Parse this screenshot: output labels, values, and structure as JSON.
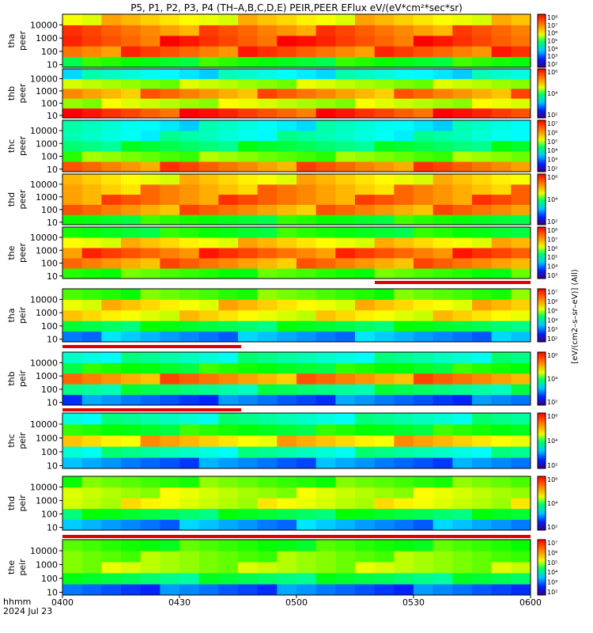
{
  "title": "P5, P1, P2, P3, P4 (TH–A,B,C,D,E) PEIR,PEER EFlux eV/(eV*cm²*sec*sr)",
  "footer": {
    "axis_label": "hhmm",
    "date": "2024 Jul 23"
  },
  "x_ticks": [
    "0400",
    "0430",
    "0500",
    "0530",
    "0600"
  ],
  "colorbar_label": "[eV/(cm2–s–sr–eV)] (All)",
  "chart_data": [
    {
      "type": "heatmap",
      "probe": "tha",
      "ylabel": [
        "tha",
        "peer"
      ],
      "y_ticks": [
        "10",
        "100",
        "1000",
        "10000"
      ],
      "cbar_ticks": [
        "10²",
        "10³",
        "10⁴",
        "10⁵",
        "10⁶",
        "10⁷",
        "10⁸"
      ],
      "style": "warm",
      "flag": "none",
      "xlim": [
        "0400",
        "0600"
      ],
      "ylim": [
        5,
        30000
      ]
    },
    {
      "type": "heatmap",
      "probe": "thb",
      "ylabel": [
        "thb",
        "peer"
      ],
      "y_ticks": [
        "10",
        "100",
        "1000",
        "10000"
      ],
      "cbar_ticks": [
        "10²",
        "10⁴",
        "10⁶"
      ],
      "style": "band_peer",
      "flag": "none",
      "xlim": [
        "0400",
        "0600"
      ],
      "ylim": [
        5,
        30000
      ]
    },
    {
      "type": "heatmap",
      "probe": "thc",
      "ylabel": [
        "thc",
        "peer"
      ],
      "y_ticks": [
        "10",
        "100",
        "1000",
        "10000"
      ],
      "cbar_ticks": [
        "10²",
        "10³",
        "10⁴",
        "10⁵",
        "10⁶",
        "10⁷"
      ],
      "style": "low_peer",
      "flag": "none",
      "xlim": [
        "0400",
        "0600"
      ],
      "ylim": [
        5,
        30000
      ]
    },
    {
      "type": "heatmap",
      "probe": "thd",
      "ylabel": [
        "thd",
        "peer"
      ],
      "y_ticks": [
        "10",
        "100",
        "1000",
        "10000"
      ],
      "cbar_ticks": [
        "10²",
        "10⁴",
        "10⁶"
      ],
      "style": "warm2",
      "flag": "none",
      "xlim": [
        "0400",
        "0600"
      ],
      "ylim": [
        5,
        30000
      ]
    },
    {
      "type": "heatmap",
      "probe": "the",
      "ylabel": [
        "the",
        "peer"
      ],
      "y_ticks": [
        "10",
        "100",
        "1000",
        "10000"
      ],
      "cbar_ticks": [
        "10³",
        "10⁴",
        "10⁵",
        "10⁶",
        "10⁷",
        "10⁸"
      ],
      "style": "warm3",
      "flag": "red_right",
      "xlim": [
        "0400",
        "0600"
      ],
      "ylim": [
        5,
        30000
      ]
    },
    {
      "type": "heatmap",
      "probe": "tha",
      "ylabel": [
        "tha",
        "peir"
      ],
      "y_ticks": [
        "10",
        "100",
        "1000",
        "10000"
      ],
      "cbar_ticks": [
        "10²",
        "10³",
        "10⁴",
        "10⁵",
        "10⁶",
        "10⁷"
      ],
      "style": "peir_a",
      "flag": "red_left",
      "xlim": [
        "0400",
        "0600"
      ],
      "ylim": [
        5,
        30000
      ]
    },
    {
      "type": "heatmap",
      "probe": "thb",
      "ylabel": [
        "thb",
        "peir"
      ],
      "y_ticks": [
        "10",
        "100",
        "1000",
        "10000"
      ],
      "cbar_ticks": [
        "10²",
        "10⁴",
        "10⁶"
      ],
      "style": "peir_b",
      "flag": "red_left",
      "xlim": [
        "0400",
        "0600"
      ],
      "ylim": [
        5,
        30000
      ]
    },
    {
      "type": "heatmap",
      "probe": "thc",
      "ylabel": [
        "thc",
        "peir"
      ],
      "y_ticks": [
        "10",
        "100",
        "1000",
        "10000"
      ],
      "cbar_ticks": [
        "10²",
        "10⁴",
        "10⁶"
      ],
      "style": "peir_c",
      "flag": "none",
      "xlim": [
        "0400",
        "0600"
      ],
      "ylim": [
        5,
        30000
      ]
    },
    {
      "type": "heatmap",
      "probe": "thd",
      "ylabel": [
        "thd",
        "peir"
      ],
      "y_ticks": [
        "10",
        "100",
        "1000",
        "10000"
      ],
      "cbar_ticks": [
        "10²",
        "10⁴",
        "10⁶"
      ],
      "style": "peir_d",
      "flag": "red_full",
      "xlim": [
        "0400",
        "0600"
      ],
      "ylim": [
        5,
        30000
      ]
    },
    {
      "type": "heatmap",
      "probe": "the",
      "ylabel": [
        "the",
        "peir"
      ],
      "y_ticks": [
        "10",
        "100",
        "1000",
        "10000"
      ],
      "cbar_ticks": [
        "10²",
        "10³",
        "10⁴",
        "10⁵",
        "10⁶",
        "10⁷"
      ],
      "style": "peir_e",
      "flag": "none",
      "xlim": [
        "0400",
        "0600"
      ],
      "ylim": [
        5,
        30000
      ]
    }
  ]
}
